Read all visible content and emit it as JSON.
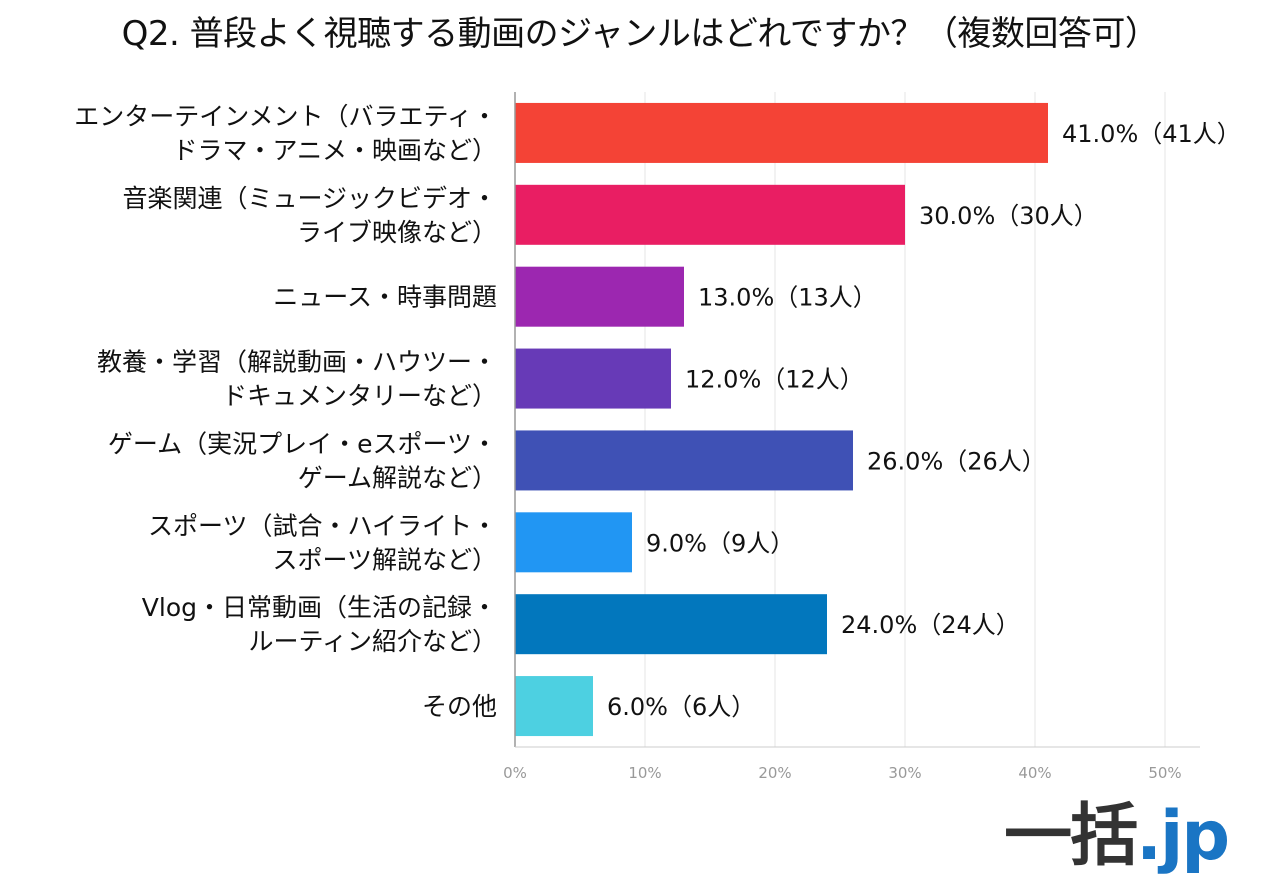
{
  "chart_data": {
    "type": "bar",
    "orientation": "horizontal",
    "title": "Q2. 普段よく視聴する動画のジャンルはどれですか？（複数回答可）",
    "categories": [
      [
        "エンターテインメント（バラエティ・",
        "ドラマ・アニメ・映画など）"
      ],
      [
        "音楽関連（ミュージックビデオ・",
        "ライブ映像など）"
      ],
      [
        "ニュース・時事問題"
      ],
      [
        "教養・学習（解説動画・ハウツー・",
        "ドキュメンタリーなど）"
      ],
      [
        "ゲーム（実況プレイ・eスポーツ・",
        "ゲーム解説など）"
      ],
      [
        "スポーツ（試合・ハイライト・",
        "スポーツ解説など）"
      ],
      [
        "Vlog・日常動画（生活の記録・",
        "ルーティン紹介など）"
      ],
      [
        "その他"
      ]
    ],
    "values": [
      41.0,
      30.0,
      13.0,
      12.0,
      26.0,
      9.0,
      24.0,
      6.0
    ],
    "data_labels": [
      "41.0%（41人）",
      "30.0%（30人）",
      "13.0%（13人）",
      "12.0%（12人）",
      "26.0%（26人）",
      "9.0%（9人）",
      "24.0%（24人）",
      "6.0%（6人）"
    ],
    "colors": [
      "#f44336",
      "#e91e63",
      "#9c27b0",
      "#673ab7",
      "#3f51b5",
      "#2196f3",
      "#0277bd",
      "#4dd0e1"
    ],
    "xlim": [
      0,
      50
    ],
    "x_ticks": [
      0,
      10,
      20,
      30,
      40,
      50
    ],
    "x_tick_labels": [
      "0%",
      "10%",
      "20%",
      "30%",
      "40%",
      "50%"
    ],
    "grid": true,
    "legend": "none"
  },
  "logo": {
    "main": "一括",
    "suffix": ".jp"
  }
}
